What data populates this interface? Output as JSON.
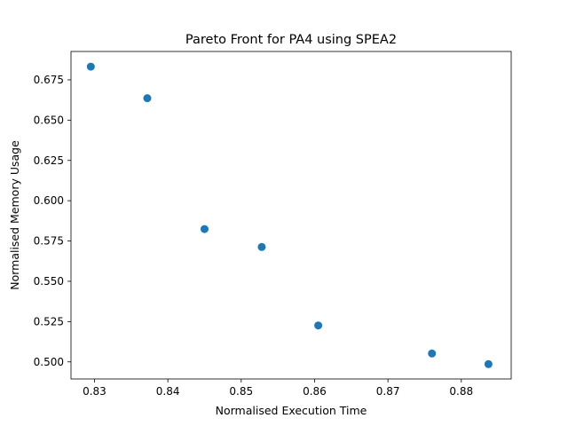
{
  "chart_data": {
    "type": "scatter",
    "title": "Pareto Front for PA4 using SPEA2",
    "xlabel": "Normalised Execution Time",
    "ylabel": "Normalised Memory Usage",
    "xlim": [
      0.8268,
      0.8868
    ],
    "ylim": [
      0.4894,
      0.6926
    ],
    "xticks": [
      0.83,
      0.84,
      0.85,
      0.86,
      0.87,
      0.88
    ],
    "xtick_labels": [
      "0.83",
      "0.84",
      "0.85",
      "0.86",
      "0.87",
      "0.88"
    ],
    "yticks": [
      0.5,
      0.525,
      0.55,
      0.575,
      0.6,
      0.625,
      0.65,
      0.675
    ],
    "ytick_labels": [
      "0.500",
      "0.525",
      "0.550",
      "0.575",
      "0.600",
      "0.625",
      "0.650",
      "0.675"
    ],
    "grid": false,
    "marker_color": "#1f77b4",
    "points": [
      {
        "x": 0.8295,
        "y": 0.6832
      },
      {
        "x": 0.8372,
        "y": 0.6636
      },
      {
        "x": 0.845,
        "y": 0.5824
      },
      {
        "x": 0.8528,
        "y": 0.5713
      },
      {
        "x": 0.8605,
        "y": 0.5226
      },
      {
        "x": 0.876,
        "y": 0.5052
      },
      {
        "x": 0.8837,
        "y": 0.4986
      }
    ]
  }
}
